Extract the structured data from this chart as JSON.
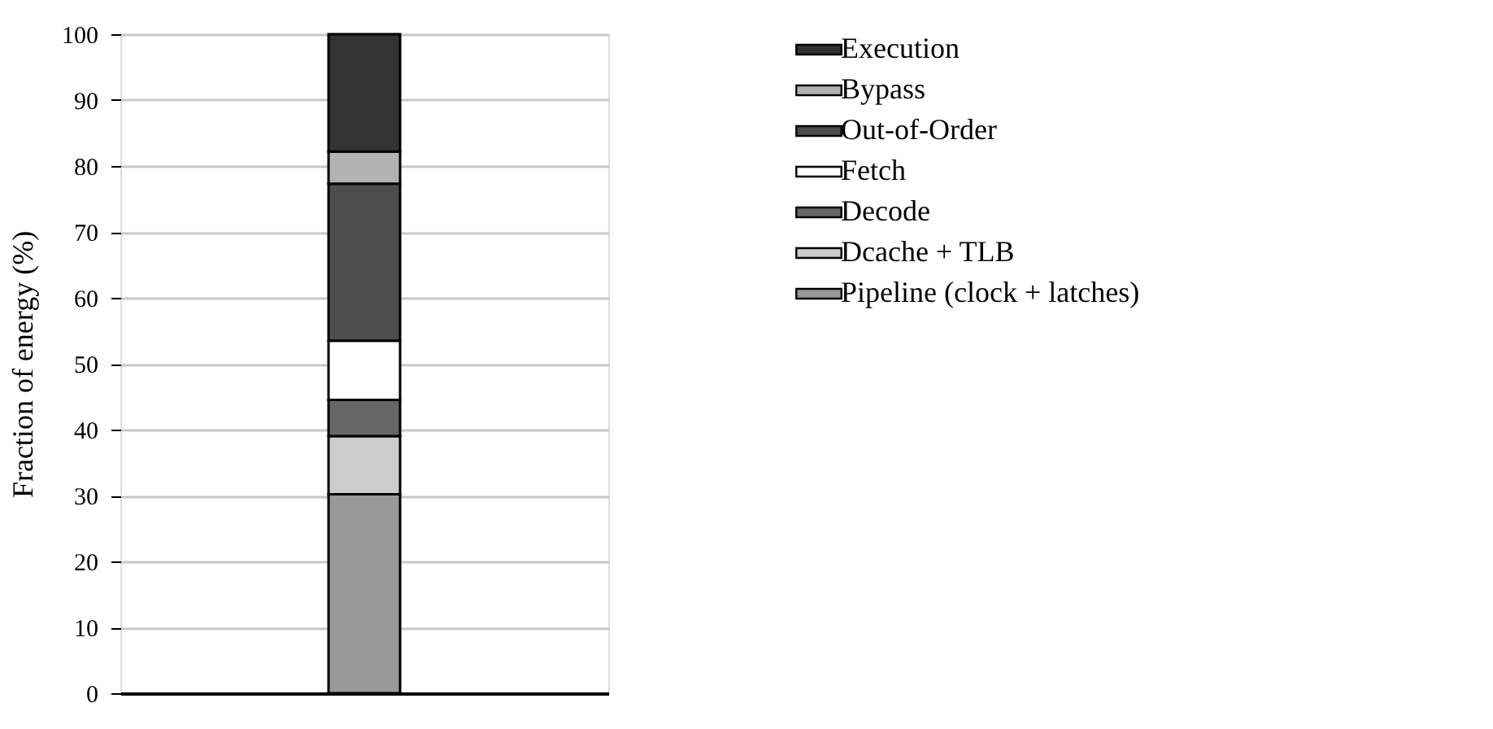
{
  "chart_data": {
    "type": "bar",
    "stacked": true,
    "categories": [
      null
    ],
    "ylabel": "Fraction of energy (%)",
    "ylim": [
      0,
      100
    ],
    "yticks": [
      0,
      10,
      20,
      30,
      40,
      50,
      60,
      70,
      80,
      90,
      100
    ],
    "grid": "y",
    "legend": "right",
    "series": [
      {
        "name": "Pipeline (clock + latches)",
        "color": "#999999",
        "values": [
          30.2
        ]
      },
      {
        "name": "Dcache + TLB",
        "color": "#cccccc",
        "values": [
          8.8
        ]
      },
      {
        "name": "Decode",
        "color": "#666666",
        "values": [
          5.5
        ]
      },
      {
        "name": "Fetch",
        "color": "#ffffff",
        "values": [
          9.0
        ]
      },
      {
        "name": "Out-of-Order",
        "color": "#4d4d4d",
        "values": [
          23.8
        ]
      },
      {
        "name": "Bypass",
        "color": "#b3b3b3",
        "values": [
          4.9
        ]
      },
      {
        "name": "Execution",
        "color": "#333333",
        "values": [
          17.8
        ]
      }
    ]
  }
}
